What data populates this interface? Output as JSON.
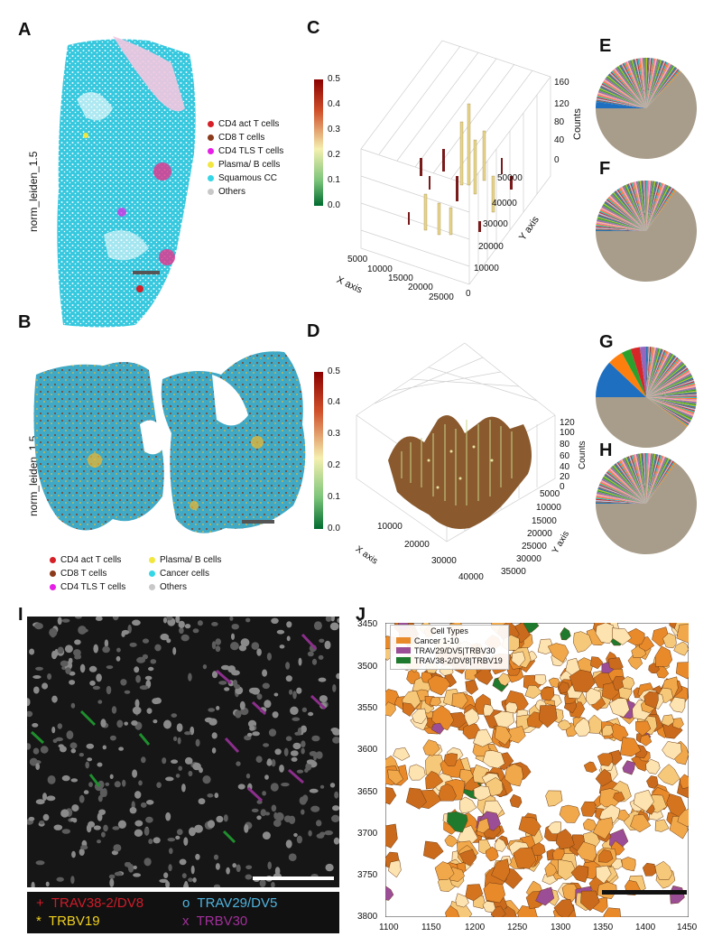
{
  "panels": {
    "A": {
      "letter": "A",
      "ylabel": "norm_leiden_1.5",
      "legend": [
        {
          "label": "CD4 act T cells",
          "color": "#d61f26"
        },
        {
          "label": "CD8 T cells",
          "color": "#8b3a1a"
        },
        {
          "label": "CD4 TLS T cells",
          "color": "#e61ee6"
        },
        {
          "label": "Plasma/ B cells",
          "color": "#f2e640"
        },
        {
          "label": "Squamous CC",
          "color": "#35d6e6"
        },
        {
          "label": "Others",
          "color": "#c8c8c8"
        }
      ]
    },
    "B": {
      "letter": "B",
      "ylabel": "norm_leiden_1.5",
      "legend_col1": [
        {
          "label": "CD4 act T cells",
          "color": "#d61f26"
        },
        {
          "label": "CD8 T cells",
          "color": "#8b3a1a"
        },
        {
          "label": "CD4 TLS T cells",
          "color": "#e61ee6"
        }
      ],
      "legend_col2": [
        {
          "label": "Plasma/ B cells",
          "color": "#f2e640"
        },
        {
          "label": "Cancer cells",
          "color": "#35d6e6"
        },
        {
          "label": "Others",
          "color": "#c8c8c8"
        }
      ]
    },
    "C": {
      "letter": "C",
      "colorbar_ticks": [
        "0.5",
        "0.4",
        "0.3",
        "0.2",
        "0.1",
        "0.0"
      ],
      "z_ticks": [
        "160",
        "120",
        "80",
        "40",
        "0"
      ],
      "z_label": "Counts",
      "x_ticks": [
        "5000",
        "10000",
        "15000",
        "20000",
        "25000"
      ],
      "x_label": "X axis",
      "y_ticks": [
        "50000",
        "40000",
        "30000",
        "20000",
        "10000",
        "0"
      ],
      "y_label": "Y axis"
    },
    "D": {
      "letter": "D",
      "colorbar_ticks": [
        "0.5",
        "0.4",
        "0.3",
        "0.2",
        "0.1",
        "0.0"
      ],
      "z_ticks": [
        "120",
        "100",
        "80",
        "60",
        "40",
        "20",
        "0"
      ],
      "z_label": "Counts",
      "x_ticks": [
        "10000",
        "20000",
        "30000",
        "40000"
      ],
      "x_label": "X axis",
      "y_ticks": [
        "5000",
        "10000",
        "15000",
        "20000",
        "25000",
        "30000",
        "35000"
      ],
      "y_label": "Y axis"
    },
    "E": {
      "letter": "E"
    },
    "F": {
      "letter": "F"
    },
    "G": {
      "letter": "G"
    },
    "H": {
      "letter": "H"
    },
    "I": {
      "letter": "I",
      "legend": [
        {
          "symbol": "+",
          "label": "TRAV38-2/DV8",
          "color": "#d01c2a"
        },
        {
          "symbol": "*",
          "label": "TRBV19",
          "color": "#f0d020"
        },
        {
          "symbol": "o",
          "label": "TRAV29/DV5",
          "color": "#4fb4e0"
        },
        {
          "symbol": "x",
          "label": "TRBV30",
          "color": "#a0309a"
        }
      ]
    },
    "J": {
      "letter": "J",
      "legend_title": "Cell Types",
      "legend": [
        {
          "label": "Cancer 1-10",
          "color": "#e8892a"
        },
        {
          "label": "TRAV29/DV5|TRBV30",
          "color": "#9b4d96"
        },
        {
          "label": "TRAV38-2/DV8|TRBV19",
          "color": "#1f7a2e"
        }
      ],
      "x_ticks": [
        "1100",
        "1150",
        "1200",
        "1250",
        "1300",
        "1350",
        "1400",
        "1450"
      ],
      "y_ticks": [
        "3450",
        "3500",
        "3550",
        "3600",
        "3650",
        "3700",
        "3750",
        "3800"
      ]
    }
  },
  "colors": {
    "cbar_top": "#8b0000",
    "cbar_mid": "#f5f0b0",
    "cbar_bottom": "#006b2e"
  }
}
